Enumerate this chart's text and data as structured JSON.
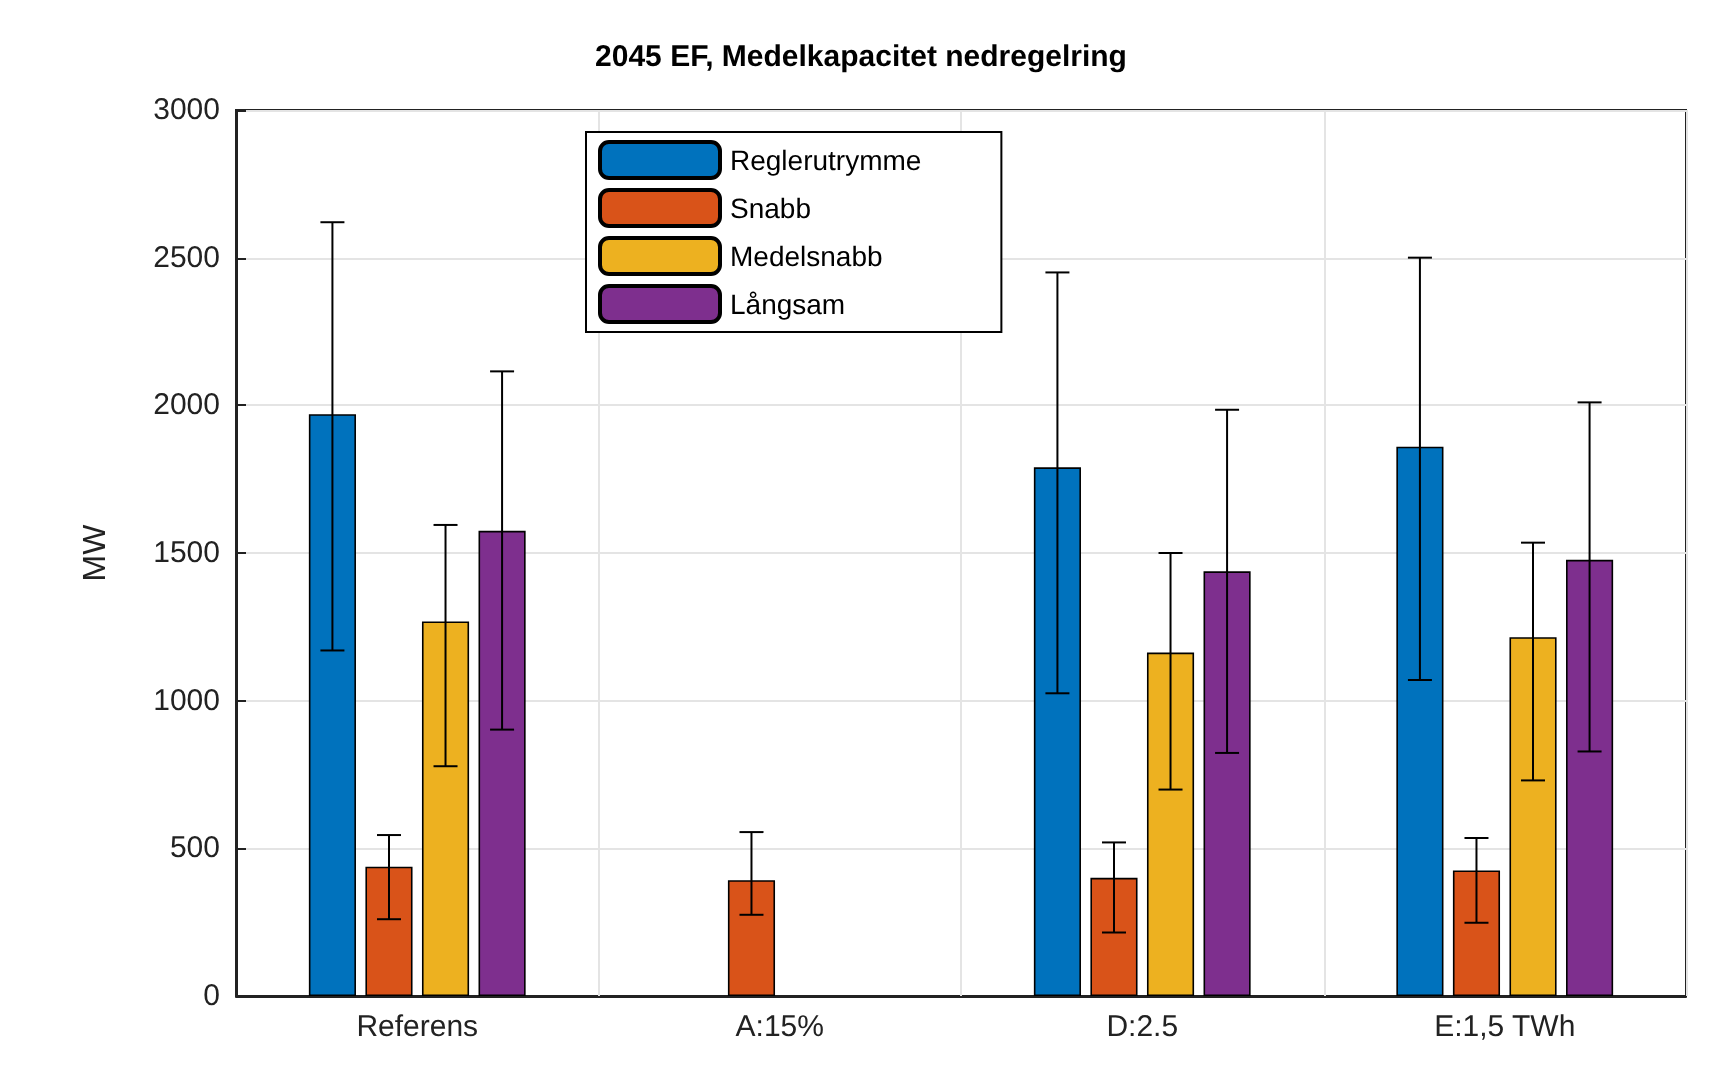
{
  "chart_data": {
    "type": "bar",
    "title": "2045 EF, Medelkapacitet nedregelring",
    "ylabel": "MW",
    "categories": [
      "Referens",
      "A:15%",
      "D:2.5",
      "E:1,5 TWh"
    ],
    "series": [
      {
        "name": "Reglerutrymme",
        "color": "#0072bd",
        "values": [
          1970,
          null,
          1790,
          1860
        ],
        "errors": [
          [
            1170,
            2620
          ],
          null,
          [
            1025,
            2450
          ],
          [
            1070,
            2500
          ]
        ]
      },
      {
        "name": "Snabb",
        "color": "#d95319",
        "values": [
          438,
          392,
          400,
          425
        ],
        "errors": [
          [
            260,
            545
          ],
          [
            275,
            555
          ],
          [
            215,
            520
          ],
          [
            248,
            535
          ]
        ]
      },
      {
        "name": "Medelsnabb",
        "color": "#edb120",
        "values": [
          1268,
          null,
          1163,
          1215
        ],
        "errors": [
          [
            778,
            1595
          ],
          null,
          [
            699,
            1500
          ],
          [
            730,
            1535
          ]
        ]
      },
      {
        "name": "Långsam",
        "color": "#7e2f8e",
        "values": [
          1575,
          null,
          1438,
          1477
        ],
        "errors": [
          [
            902,
            2115
          ],
          null,
          [
            823,
            1985
          ],
          [
            828,
            2010
          ]
        ]
      }
    ],
    "ylim": [
      0,
      3000
    ],
    "yticks": [
      0,
      500,
      1000,
      1500,
      2000,
      2500,
      3000
    ],
    "grid": true,
    "legend": "top"
  }
}
